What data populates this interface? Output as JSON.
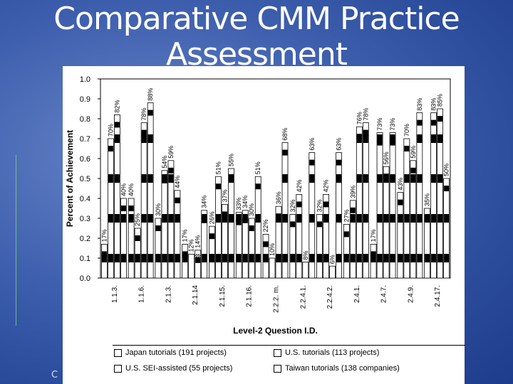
{
  "slide": {
    "title": "Comparative CMM Practice Assessment",
    "footer_text": "C"
  },
  "colors": {
    "background": "#3e5fae",
    "text": "#ffffff",
    "series_fill": [
      "#ffffff",
      "#ffffff",
      "#ffffff",
      "#ffffff"
    ]
  },
  "chart_data": {
    "type": "bar",
    "title": "",
    "xlabel": "Level-2 Question I.D.",
    "ylabel": "Percent of Achievement",
    "ylim": [
      0,
      1.0
    ],
    "yticks": [
      "0.0",
      "0.1",
      "0.2",
      "0.3",
      "0.4",
      "0.5",
      "0.6",
      "0.7",
      "0.8",
      "0.9",
      "1.0"
    ],
    "categories": [
      "1.1.3.",
      "1.1.6.",
      "2.1.3.",
      "2.1.14",
      "2.1.15.",
      "2.1.16.",
      "2.2.2. m.",
      "2.2.4.1.",
      "2.2.4.2.",
      "2.4.1.",
      "2.4.7.",
      "2.4.9.",
      "2.4.17."
    ],
    "series": [
      {
        "name": "Japan tutorials (191 projects)",
        "values": [
          0.17,
          0.4,
          0.3,
          0.17,
          0.26,
          0.33,
          0.22,
          0.32,
          0.32,
          0.27,
          0.17,
          0.43,
          0.35
        ]
      },
      {
        "name": "U.S. tutorials (113 projects)",
        "values": [
          0.7,
          0.25,
          0.54,
          0.12,
          0.51,
          0.34,
          0.1,
          0.42,
          0.42,
          0.39,
          0.73,
          0.7,
          0.83
        ]
      },
      {
        "name": "U.S. SEI-assisted (55 projects)",
        "values": [
          0.82,
          0.78,
          0.59,
          0.14,
          0.37,
          0.3,
          0.36,
          0.08,
          0.06,
          0.76,
          0.56,
          0.59,
          0.85
        ]
      },
      {
        "name": "Taiwan tutorials (138 companies)",
        "values": [
          0.4,
          0.88,
          0.44,
          0.34,
          0.55,
          0.51,
          0.68,
          0.63,
          0.63,
          0.78,
          0.73,
          0.83,
          0.5
        ]
      }
    ],
    "data_labels": [
      [
        "17%",
        "70%",
        "82%",
        "40%"
      ],
      [
        "40%",
        "25%",
        "78%",
        "88%"
      ],
      [
        "30%",
        "54%",
        "59%",
        "44%"
      ],
      [
        "17%",
        "12%",
        "14%",
        "34%"
      ],
      [
        "26%",
        "51%",
        "37%",
        "55%"
      ],
      [
        "33%",
        "34%",
        "30%",
        "51%"
      ],
      [
        "22%",
        "10%",
        "36%",
        "68%"
      ],
      [
        "32%",
        "42%",
        "8%",
        "63%"
      ],
      [
        "32%",
        "42%",
        "6%",
        "63%"
      ],
      [
        "27%",
        "39%",
        "76%",
        "78%"
      ],
      [
        "17%",
        "73%",
        "56%",
        "73%"
      ],
      [
        "43%",
        "70%",
        "59%",
        "83%"
      ],
      [
        "35%",
        "83%",
        "85%",
        "50%"
      ]
    ],
    "grid": false,
    "legend_position": "bottom"
  }
}
